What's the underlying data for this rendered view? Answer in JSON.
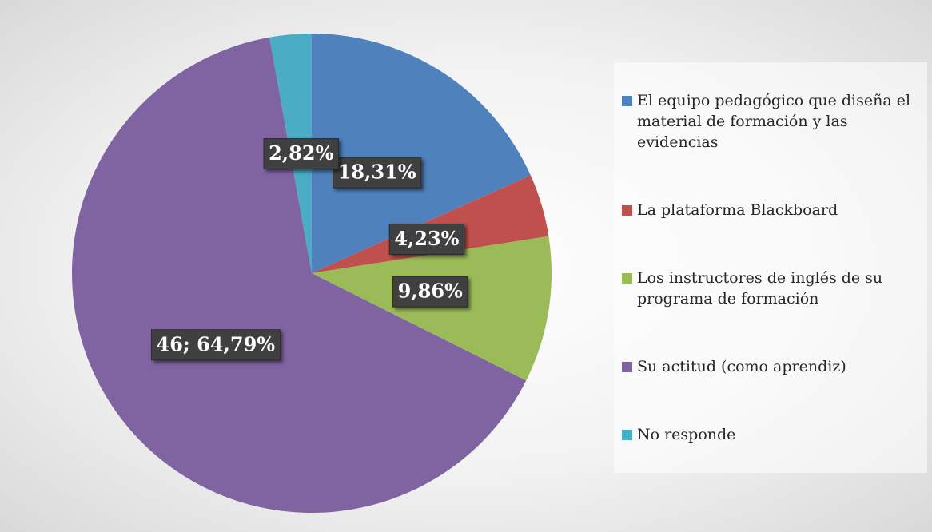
{
  "chart_data": {
    "type": "pie",
    "categories": [
      "El equipo pedagógico que diseña el material de formación y las evidencias",
      "La plataforma Blackboard",
      "Los instructores de inglés de su programa de formación",
      "Su actitud (como aprendiz)",
      "No responde"
    ],
    "values": [
      18.31,
      4.23,
      9.86,
      64.79,
      2.82
    ],
    "value_labels": [
      "18,31%",
      "4,23%",
      "9,86%",
      "46; 64,79%",
      "2,82%"
    ],
    "colors": [
      "#4f81bd",
      "#c0504d",
      "#9bbb59",
      "#8064a2",
      "#4bacc6"
    ],
    "legend": "right"
  }
}
